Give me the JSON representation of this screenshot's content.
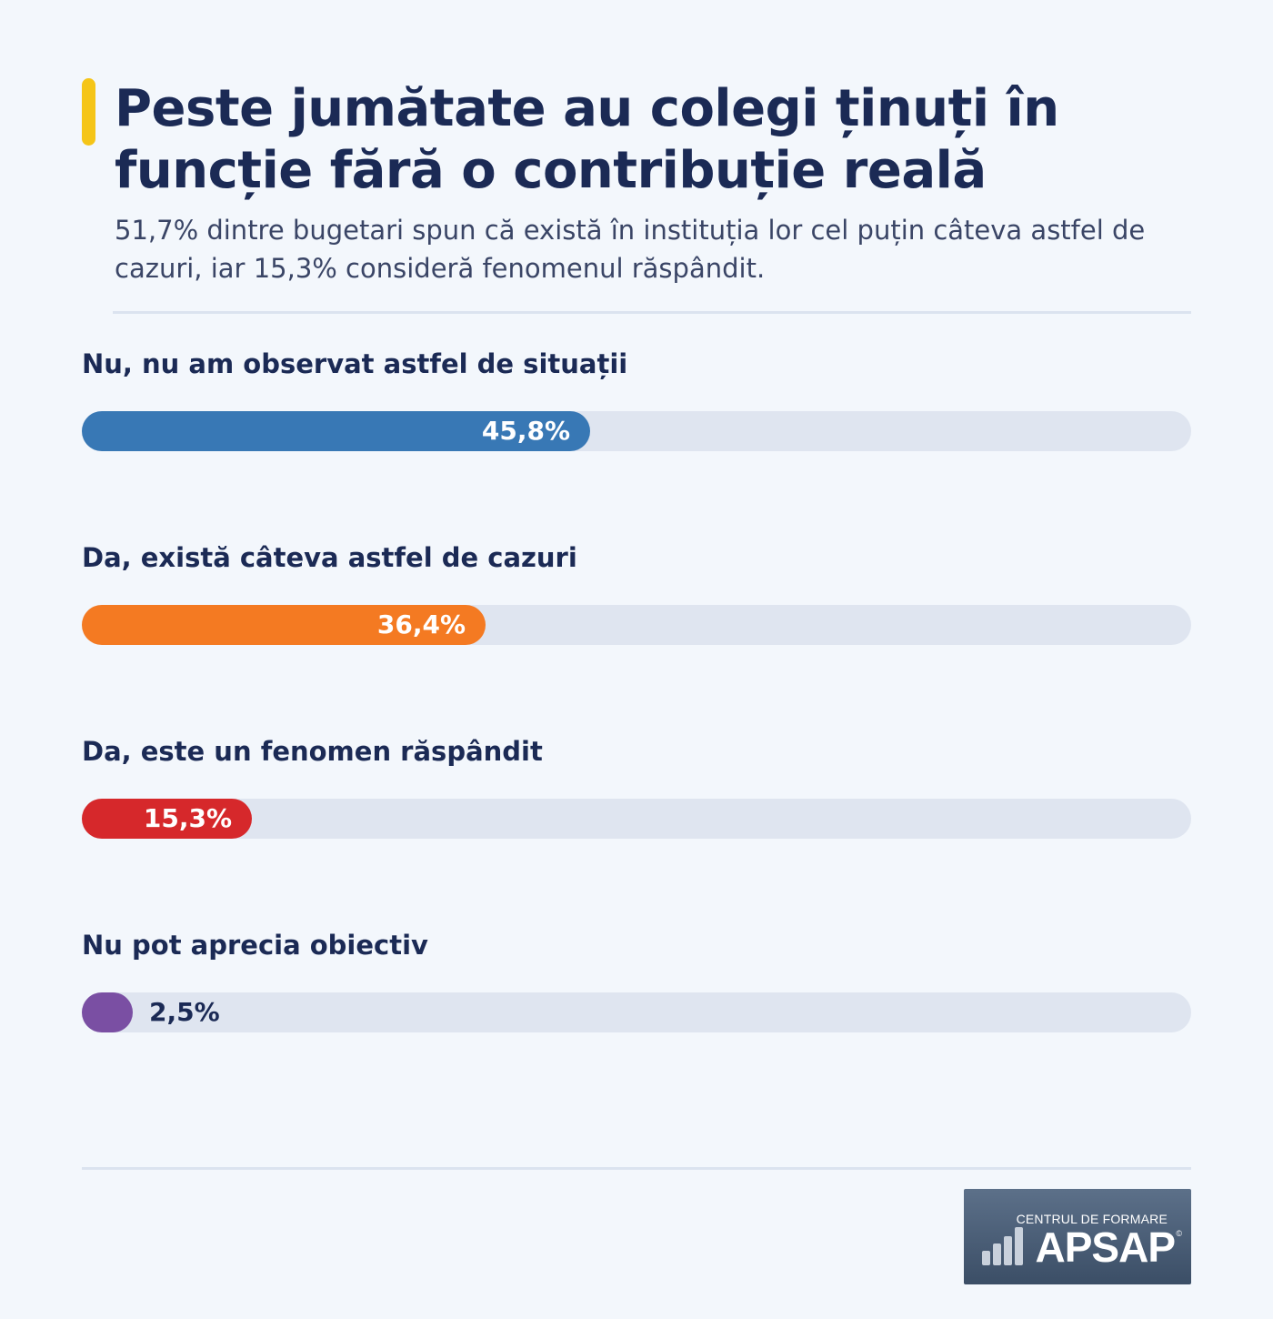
{
  "header": {
    "title": "Peste jumătate au colegi ținuți în funcție fără o contribuție reală",
    "subtitle": "51,7% dintre bugetari spun că există în instituția lor cel puțin câteva astfel de cazuri, iar 15,3% consideră fenomenul răspândit."
  },
  "colors": {
    "accent": "#f5c518",
    "track": "#dfe5f0"
  },
  "chart_data": {
    "type": "bar",
    "orientation": "horizontal",
    "title": "Peste jumătate au colegi ținuți în funcție fără o contribuție reală",
    "xlim": [
      0,
      100
    ],
    "categories": [
      "Nu, nu am observat astfel de situații",
      "Da, există câteva astfel de cazuri",
      "Da, este un fenomen răspândit",
      "Nu pot aprecia obiectiv"
    ],
    "values": [
      45.8,
      36.4,
      15.3,
      2.5
    ],
    "value_labels": [
      "45,8%",
      "36,4%",
      "15,3%",
      "2,5%"
    ],
    "colors": [
      "#3878b5",
      "#f47a22",
      "#d6282b",
      "#7a4fa3"
    ]
  },
  "logo": {
    "line1": "CENTRUL DE FORMARE",
    "line2": "APSAP",
    "mark": "©"
  }
}
